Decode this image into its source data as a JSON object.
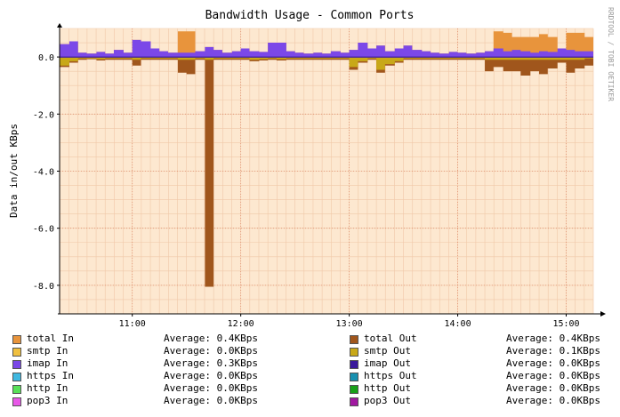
{
  "chart_data": {
    "type": "area",
    "title": "Bandwidth Usage - Common Ports",
    "ylabel": "Data in/out KBps",
    "xlabel": "",
    "watermark": "RRDTOOL / TOBI OETIKER",
    "ylim": [
      -9.0,
      1.0
    ],
    "y_ticks": [
      {
        "value": 0.0,
        "label": "0.0"
      },
      {
        "value": -2.0,
        "label": "-2.0"
      },
      {
        "value": -4.0,
        "label": "-4.0"
      },
      {
        "value": -6.0,
        "label": "-6.0"
      },
      {
        "value": -8.0,
        "label": "-8.0"
      }
    ],
    "x_range_hours": [
      10.33,
      15.25
    ],
    "x_ticks": [
      {
        "value": 11.0,
        "label": "11:00"
      },
      {
        "value": 12.0,
        "label": "12:00"
      },
      {
        "value": 13.0,
        "label": "13:00"
      },
      {
        "value": 14.0,
        "label": "14:00"
      },
      {
        "value": 15.0,
        "label": "15:00"
      }
    ],
    "series": [
      {
        "name": "total In",
        "color": "#e8943c",
        "x": [
          10.33,
          10.42,
          10.5,
          10.58,
          10.67,
          10.75,
          10.83,
          10.92,
          11.0,
          11.08,
          11.17,
          11.25,
          11.33,
          11.42,
          11.5,
          11.58,
          11.67,
          11.75,
          11.83,
          11.92,
          12.0,
          12.08,
          12.17,
          12.25,
          12.33,
          12.42,
          12.5,
          12.58,
          12.67,
          12.75,
          12.83,
          12.92,
          13.0,
          13.08,
          13.17,
          13.25,
          13.33,
          13.42,
          13.5,
          13.58,
          13.67,
          13.75,
          13.83,
          13.92,
          14.0,
          14.08,
          14.17,
          14.25,
          14.33,
          14.42,
          14.5,
          14.58,
          14.67,
          14.75,
          14.83,
          14.92,
          15.0,
          15.08,
          15.17,
          15.25
        ],
        "values": [
          0.45,
          0.55,
          0.15,
          0.12,
          0.18,
          0.12,
          0.25,
          0.15,
          0.6,
          0.55,
          0.3,
          0.2,
          0.15,
          0.9,
          0.9,
          0.2,
          0.35,
          0.25,
          0.15,
          0.2,
          0.3,
          0.2,
          0.18,
          0.5,
          0.5,
          0.2,
          0.15,
          0.12,
          0.15,
          0.12,
          0.2,
          0.15,
          0.25,
          0.5,
          0.3,
          0.4,
          0.2,
          0.3,
          0.4,
          0.25,
          0.2,
          0.15,
          0.12,
          0.18,
          0.15,
          0.12,
          0.15,
          0.2,
          0.9,
          0.85,
          0.7,
          0.7,
          0.7,
          0.8,
          0.7,
          0.3,
          0.85,
          0.85,
          0.7,
          0.7
        ]
      },
      {
        "name": "total Out",
        "color": "#a0561c",
        "x": [
          10.33,
          10.42,
          10.5,
          10.58,
          10.67,
          10.75,
          10.83,
          10.92,
          11.0,
          11.08,
          11.17,
          11.25,
          11.33,
          11.42,
          11.5,
          11.58,
          11.67,
          11.75,
          11.83,
          11.92,
          12.0,
          12.08,
          12.17,
          12.25,
          12.33,
          12.42,
          12.5,
          12.58,
          12.67,
          12.75,
          12.83,
          12.92,
          13.0,
          13.08,
          13.17,
          13.25,
          13.33,
          13.42,
          13.5,
          13.58,
          13.67,
          13.75,
          13.83,
          13.92,
          14.0,
          14.08,
          14.17,
          14.25,
          14.33,
          14.42,
          14.5,
          14.58,
          14.67,
          14.75,
          14.83,
          14.92,
          15.0,
          15.08,
          15.17,
          15.25
        ],
        "values": [
          -0.35,
          -0.2,
          -0.1,
          -0.08,
          -0.12,
          -0.1,
          -0.1,
          -0.1,
          -0.3,
          -0.1,
          -0.1,
          -0.1,
          -0.1,
          -0.55,
          -0.6,
          -0.1,
          -8.05,
          -0.1,
          -0.1,
          -0.1,
          -0.1,
          -0.15,
          -0.12,
          -0.1,
          -0.12,
          -0.1,
          -0.1,
          -0.1,
          -0.1,
          -0.1,
          -0.1,
          -0.1,
          -0.45,
          -0.2,
          -0.1,
          -0.55,
          -0.3,
          -0.2,
          -0.1,
          -0.1,
          -0.1,
          -0.1,
          -0.1,
          -0.1,
          -0.1,
          -0.1,
          -0.1,
          -0.5,
          -0.35,
          -0.5,
          -0.5,
          -0.65,
          -0.5,
          -0.6,
          -0.4,
          -0.2,
          -0.55,
          -0.4,
          -0.3,
          -0.3
        ]
      },
      {
        "name": "smtp In",
        "color": "#f0c040",
        "x": [
          10.33,
          15.25
        ],
        "values": [
          0.0,
          0.0
        ]
      },
      {
        "name": "smtp Out",
        "color": "#c8a818",
        "x": [
          10.33,
          10.42,
          10.5,
          10.58,
          10.67,
          10.75,
          10.83,
          10.92,
          11.0,
          11.08,
          11.17,
          11.25,
          11.33,
          11.42,
          11.5,
          11.58,
          11.67,
          11.75,
          11.83,
          11.92,
          12.0,
          12.08,
          12.17,
          12.25,
          12.33,
          12.42,
          12.5,
          12.58,
          12.67,
          12.75,
          12.83,
          12.92,
          13.0,
          13.08,
          13.17,
          13.25,
          13.33,
          13.42,
          13.5,
          13.58,
          13.67,
          13.75,
          13.83,
          13.92,
          14.0,
          14.08,
          14.17,
          14.25,
          14.33,
          14.42,
          14.5,
          14.58,
          14.67,
          14.75,
          14.83,
          14.92,
          15.0,
          15.08,
          15.17,
          15.25
        ],
        "values": [
          -0.3,
          -0.15,
          -0.05,
          -0.05,
          -0.08,
          -0.05,
          -0.05,
          -0.05,
          -0.1,
          -0.05,
          -0.05,
          -0.05,
          -0.05,
          -0.1,
          -0.1,
          -0.05,
          -0.1,
          -0.05,
          -0.05,
          -0.05,
          -0.05,
          -0.1,
          -0.08,
          -0.05,
          -0.08,
          -0.05,
          -0.05,
          -0.05,
          -0.05,
          -0.05,
          -0.05,
          -0.05,
          -0.35,
          -0.15,
          -0.05,
          -0.45,
          -0.25,
          -0.15,
          -0.05,
          -0.05,
          -0.05,
          -0.05,
          -0.05,
          -0.05,
          -0.05,
          -0.05,
          -0.05,
          -0.1,
          -0.1,
          -0.1,
          -0.1,
          -0.1,
          -0.1,
          -0.1,
          -0.1,
          -0.1,
          -0.1,
          -0.1,
          -0.05,
          -0.05
        ]
      },
      {
        "name": "imap In",
        "color": "#7b48e8",
        "x": [
          10.33,
          10.42,
          10.5,
          10.58,
          10.67,
          10.75,
          10.83,
          10.92,
          11.0,
          11.08,
          11.17,
          11.25,
          11.33,
          11.42,
          11.5,
          11.58,
          11.67,
          11.75,
          11.83,
          11.92,
          12.0,
          12.08,
          12.17,
          12.25,
          12.33,
          12.42,
          12.5,
          12.58,
          12.67,
          12.75,
          12.83,
          12.92,
          13.0,
          13.08,
          13.17,
          13.25,
          13.33,
          13.42,
          13.5,
          13.58,
          13.67,
          13.75,
          13.83,
          13.92,
          14.0,
          14.08,
          14.17,
          14.25,
          14.33,
          14.42,
          14.5,
          14.58,
          14.67,
          14.75,
          14.83,
          14.92,
          15.0,
          15.08,
          15.17,
          15.25
        ],
        "values": [
          0.45,
          0.55,
          0.15,
          0.12,
          0.18,
          0.12,
          0.25,
          0.15,
          0.6,
          0.55,
          0.3,
          0.2,
          0.15,
          0.15,
          0.15,
          0.2,
          0.35,
          0.25,
          0.15,
          0.2,
          0.3,
          0.2,
          0.18,
          0.5,
          0.5,
          0.2,
          0.15,
          0.12,
          0.15,
          0.12,
          0.2,
          0.15,
          0.25,
          0.5,
          0.3,
          0.4,
          0.2,
          0.3,
          0.4,
          0.25,
          0.2,
          0.15,
          0.12,
          0.18,
          0.15,
          0.12,
          0.15,
          0.2,
          0.3,
          0.2,
          0.25,
          0.2,
          0.15,
          0.2,
          0.18,
          0.3,
          0.25,
          0.2,
          0.2,
          0.2
        ]
      },
      {
        "name": "imap Out",
        "color": "#3a1a9c",
        "x": [
          10.33,
          15.25
        ],
        "values": [
          -0.02,
          -0.02
        ]
      },
      {
        "name": "https In",
        "color": "#40b8e0",
        "x": [
          10.33,
          15.25
        ],
        "values": [
          0.0,
          0.0
        ]
      },
      {
        "name": "https Out",
        "color": "#1890b0",
        "x": [
          10.33,
          15.25
        ],
        "values": [
          0.0,
          0.0
        ]
      },
      {
        "name": "http In",
        "color": "#58e058",
        "x": [
          10.33,
          15.25
        ],
        "values": [
          0.0,
          0.0
        ]
      },
      {
        "name": "http Out",
        "color": "#18a018",
        "x": [
          10.33,
          15.25
        ],
        "values": [
          0.0,
          0.0
        ]
      },
      {
        "name": "pop3 In",
        "color": "#e858e8",
        "x": [
          10.33,
          15.25
        ],
        "values": [
          0.0,
          0.0
        ]
      },
      {
        "name": "pop3 Out",
        "color": "#a018a0",
        "x": [
          10.33,
          15.25
        ],
        "values": [
          0.0,
          0.0
        ]
      }
    ],
    "grid": true,
    "legend_position": "bottom"
  },
  "legend": {
    "average_label": "Average:",
    "items": [
      {
        "label": "total In",
        "avg": "0.4KBps",
        "color": "#e8943c"
      },
      {
        "label": "total Out",
        "avg": "0.4KBps",
        "color": "#a0561c"
      },
      {
        "label": "smtp In",
        "avg": "0.0KBps",
        "color": "#f0c040"
      },
      {
        "label": "smtp Out",
        "avg": "0.1KBps",
        "color": "#c8a818"
      },
      {
        "label": "imap In",
        "avg": "0.3KBps",
        "color": "#7b48e8"
      },
      {
        "label": "imap Out",
        "avg": "0.0KBps",
        "color": "#3a1a9c"
      },
      {
        "label": "https In",
        "avg": "0.0KBps",
        "color": "#40b8e0"
      },
      {
        "label": "https Out",
        "avg": "0.0KBps",
        "color": "#1890b0"
      },
      {
        "label": "http In",
        "avg": "0.0KBps",
        "color": "#58e058"
      },
      {
        "label": "http Out",
        "avg": "0.0KBps",
        "color": "#18a018"
      },
      {
        "label": "pop3 In",
        "avg": "0.0KBps",
        "color": "#e858e8"
      },
      {
        "label": "pop3 Out",
        "avg": "0.0KBps",
        "color": "#a018a0"
      }
    ]
  },
  "colors": {
    "plot_bg": "#fde8d0",
    "minor_grid": "#f0c8a8",
    "major_grid": "#e09070"
  }
}
